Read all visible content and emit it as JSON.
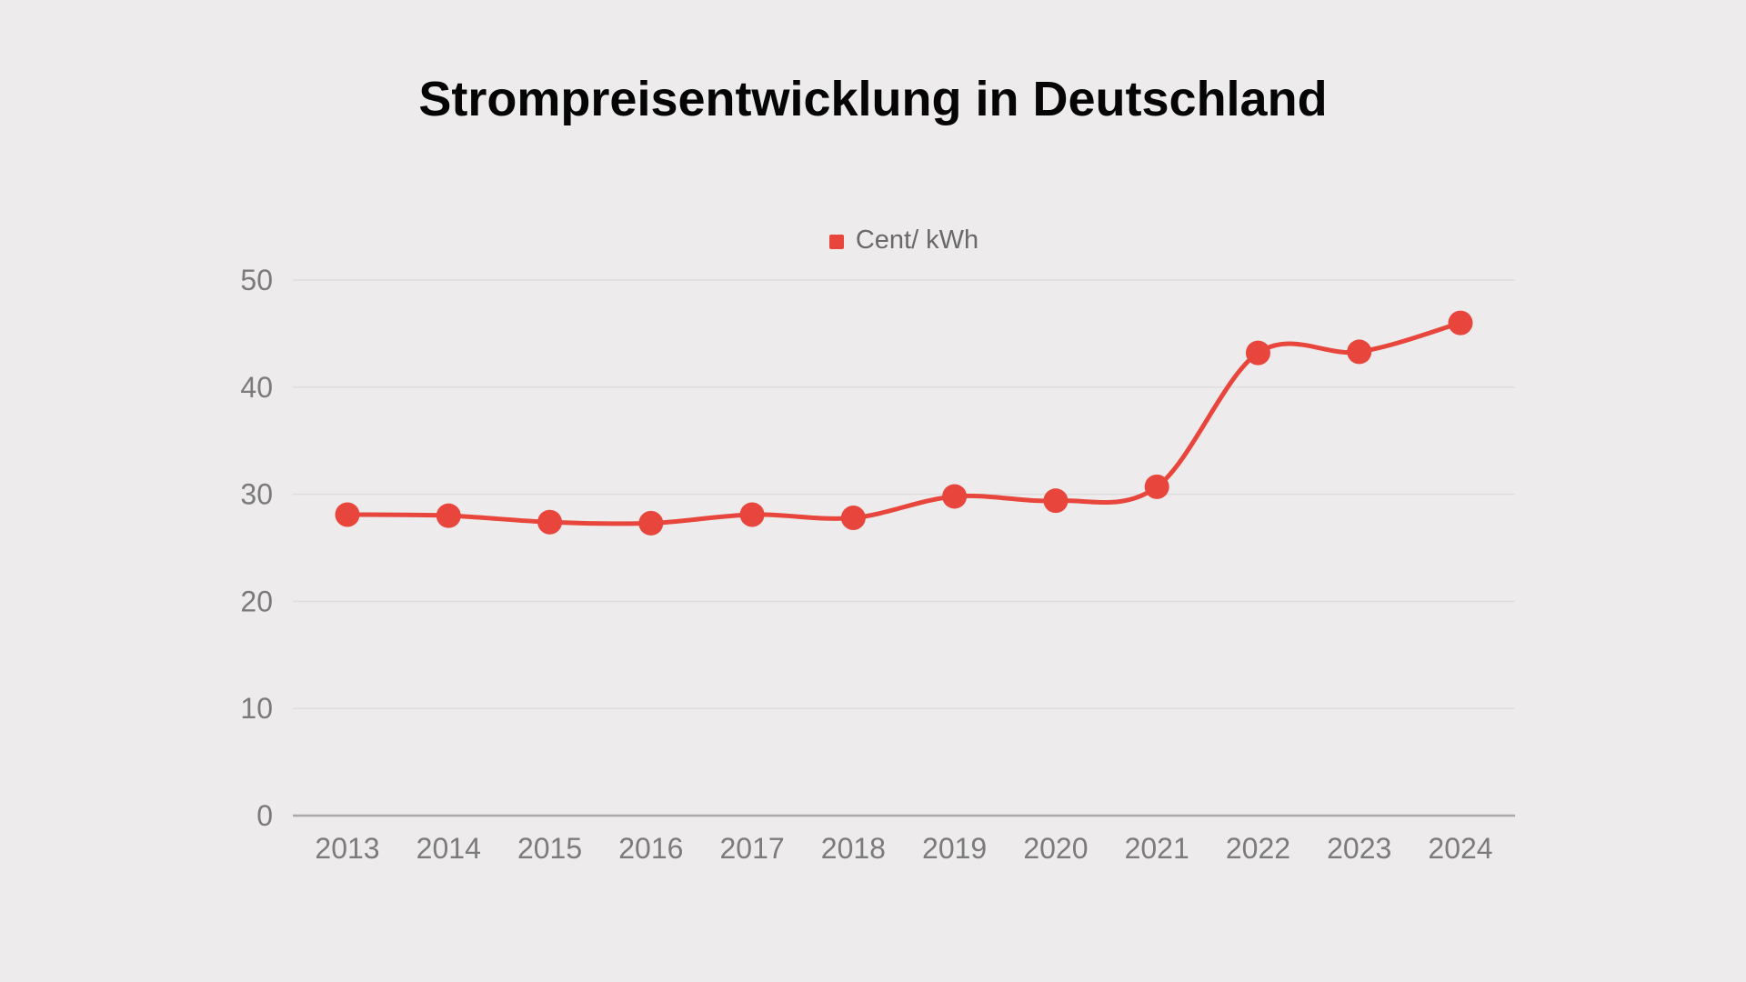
{
  "page": {
    "background_color": "#EDEBEB"
  },
  "chart": {
    "title": "Strompreisentwicklung in Deutschland",
    "legend": {
      "label": "Cent/ kWh",
      "marker_color": "#E8453C"
    }
  },
  "chart_data": {
    "type": "line",
    "title": "Strompreisentwicklung in Deutschland",
    "categories": [
      "2013",
      "2014",
      "2015",
      "2016",
      "2017",
      "2018",
      "2019",
      "2020",
      "2021",
      "2022",
      "2023",
      "2024"
    ],
    "series": [
      {
        "name": "Cent/ kWh",
        "values": [
          28.1,
          28.0,
          27.4,
          27.3,
          28.1,
          27.8,
          29.8,
          29.4,
          30.7,
          43.2,
          43.3,
          46.0
        ],
        "color": "#E8453C"
      }
    ],
    "xlabel": "",
    "ylabel": "",
    "ylim": [
      0,
      50
    ],
    "yticks": [
      0,
      10,
      20,
      30,
      40,
      50
    ],
    "grid": true,
    "smooth": true,
    "marker": "circle",
    "legend_position": "top-center",
    "colors": {
      "line": "#E8453C",
      "marker": "#E8453C",
      "gridline": "#DEDCDC",
      "axis_line": "#ABA9A9",
      "tick_label": "#7B7B7B",
      "title": "#050505",
      "legend_text": "#696969",
      "background": "#EDEBEB"
    }
  }
}
